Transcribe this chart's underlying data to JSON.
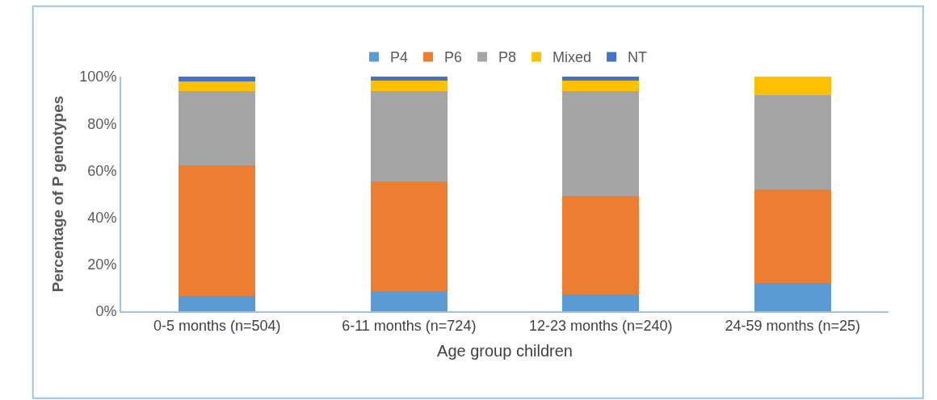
{
  "chart_data": {
    "type": "bar",
    "stacked": true,
    "xlabel": "Age group children",
    "ylabel": "Percentage of P genotypes",
    "categories": [
      "0-5 months (n=504)",
      "6-11 months (n=724)",
      "12-23 months (n=240)",
      "24-59 months (n=25)"
    ],
    "series": [
      {
        "name": "P4",
        "color": "#5b9bd5",
        "values": [
          6.5,
          8.6,
          7.3,
          12
        ]
      },
      {
        "name": "P6",
        "color": "#ed7d31",
        "values": [
          55.8,
          46.6,
          41.7,
          40
        ]
      },
      {
        "name": "P8",
        "color": "#a5a5a5",
        "values": [
          31.4,
          38.5,
          44.7,
          40
        ]
      },
      {
        "name": "Mixed",
        "color": "#ffc000",
        "values": [
          4.1,
          4.7,
          4.7,
          8
        ]
      },
      {
        "name": "NT",
        "color": "#4472c4",
        "values": [
          2.2,
          1.6,
          1.6,
          0
        ]
      }
    ],
    "ylim": [
      0,
      100
    ],
    "yticks": [
      {
        "value": 0,
        "label": "0%"
      },
      {
        "value": 20,
        "label": "20%"
      },
      {
        "value": 40,
        "label": "40%"
      },
      {
        "value": 60,
        "label": "60%"
      },
      {
        "value": 80,
        "label": "80%"
      },
      {
        "value": 100,
        "label": "100%"
      }
    ],
    "grid": false,
    "legend": "top"
  }
}
